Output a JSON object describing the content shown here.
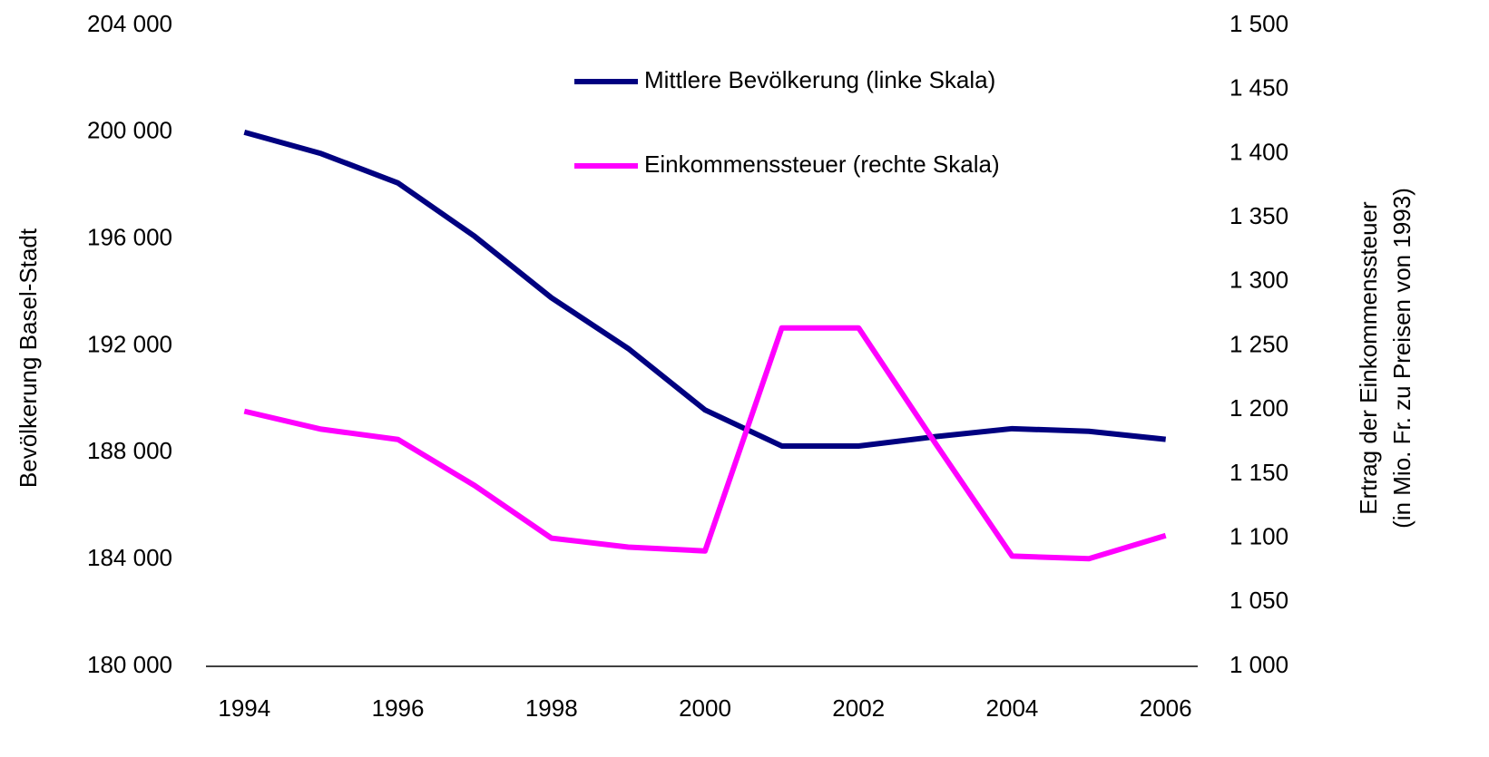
{
  "chart_data": {
    "type": "line",
    "y_label": "Bevölkerung Basel-Stadt",
    "y2_label": [
      "Ertrag der Einkommenssteuer",
      "(in Mio. Fr. zu Preisen von 1993)"
    ],
    "x": [
      1994,
      1995,
      1996,
      1997,
      1998,
      1999,
      2000,
      2001,
      2002,
      2003,
      2004,
      2005,
      2006
    ],
    "xlim": [
      1993.5,
      2006.5
    ],
    "xticks": [
      1994,
      1996,
      1998,
      2000,
      2002,
      2004,
      2006
    ],
    "ylim": [
      180000,
      204000
    ],
    "yticks": [
      {
        "value": 180000,
        "label": "180 000"
      },
      {
        "value": 184000,
        "label": "184 000"
      },
      {
        "value": 188000,
        "label": "188 000"
      },
      {
        "value": 192000,
        "label": "192 000"
      },
      {
        "value": 196000,
        "label": "196 000"
      },
      {
        "value": 200000,
        "label": "200 000"
      },
      {
        "value": 204000,
        "label": "204 000"
      }
    ],
    "y2lim": [
      1000,
      1500
    ],
    "y2ticks": [
      {
        "value": 1000,
        "label": "1 000"
      },
      {
        "value": 1050,
        "label": "1 050"
      },
      {
        "value": 1100,
        "label": "1 100"
      },
      {
        "value": 1150,
        "label": "1 150"
      },
      {
        "value": 1200,
        "label": "1 200"
      },
      {
        "value": 1250,
        "label": "1 250"
      },
      {
        "value": 1300,
        "label": "1 300"
      },
      {
        "value": 1350,
        "label": "1 350"
      },
      {
        "value": 1400,
        "label": "1 400"
      },
      {
        "value": 1450,
        "label": "1 450"
      },
      {
        "value": 1500,
        "label": "1 500"
      }
    ],
    "grid": false,
    "legend": "upper center",
    "series": [
      {
        "name": "Mittlere Bevölkerung (linke Skala)",
        "color": "#000080",
        "axis": "y",
        "values": [
          200000,
          199200,
          198100,
          196100,
          193800,
          191900,
          189600,
          188250,
          188250,
          188600,
          188900,
          188800,
          188500
        ]
      },
      {
        "name": "Einkommenssteuer (rechte Skala)",
        "color": "#ff00ff",
        "axis": "y2",
        "values": [
          1199,
          1185,
          1177,
          1141,
          1100,
          1093,
          1090,
          1264,
          1264,
          1174,
          1086,
          1084,
          1102
        ]
      }
    ]
  }
}
